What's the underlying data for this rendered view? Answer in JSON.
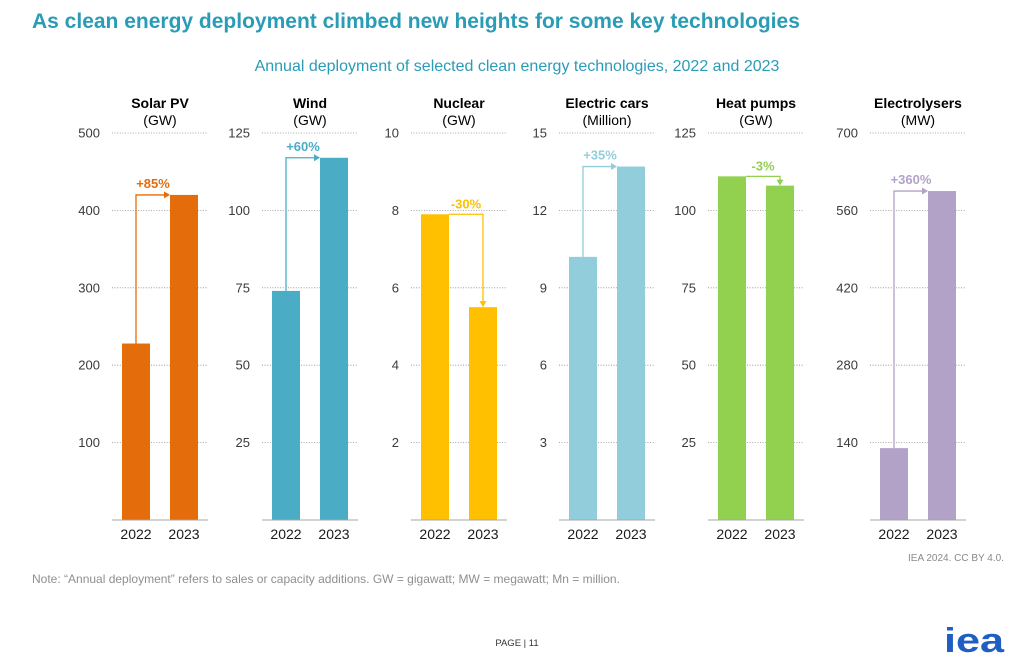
{
  "header": {
    "title": "As clean energy deployment climbed new heights for some key technologies",
    "subtitle": "Annual deployment of selected clean energy technologies, 2022 and 2023"
  },
  "chart_data": [
    {
      "type": "bar",
      "title": "Solar PV",
      "unit": "(GW)",
      "categories": [
        "2022",
        "2023"
      ],
      "values": [
        228,
        420
      ],
      "ylim": [
        0,
        500
      ],
      "yticks": [
        100,
        200,
        300,
        400,
        500
      ],
      "grid": true,
      "change_label": "+85%",
      "color": "#e46c0a"
    },
    {
      "type": "bar",
      "title": "Wind",
      "unit": "(GW)",
      "categories": [
        "2022",
        "2023"
      ],
      "values": [
        74,
        117
      ],
      "ylim": [
        0,
        125
      ],
      "yticks": [
        25,
        50,
        75,
        100,
        125
      ],
      "grid": true,
      "change_label": "+60%",
      "color": "#4bacc6"
    },
    {
      "type": "bar",
      "title": "Nuclear",
      "unit": "(GW)",
      "categories": [
        "2022",
        "2023"
      ],
      "values": [
        7.9,
        5.5
      ],
      "ylim": [
        0,
        10
      ],
      "yticks": [
        2,
        4,
        6,
        8,
        10
      ],
      "grid": true,
      "change_label": "-30%",
      "color": "#ffc000"
    },
    {
      "type": "bar",
      "title": "Electric cars",
      "unit": "(Million)",
      "categories": [
        "2022",
        "2023"
      ],
      "values": [
        10.2,
        13.7
      ],
      "ylim": [
        0,
        15
      ],
      "yticks": [
        3,
        6,
        9,
        12,
        15
      ],
      "grid": true,
      "change_label": "+35%",
      "color": "#92cddc"
    },
    {
      "type": "bar",
      "title": "Heat pumps",
      "unit": "(GW)",
      "categories": [
        "2022",
        "2023"
      ],
      "values": [
        111,
        108
      ],
      "ylim": [
        0,
        125
      ],
      "yticks": [
        25,
        50,
        75,
        100,
        125
      ],
      "grid": true,
      "change_label": "-3%",
      "color": "#92d050"
    },
    {
      "type": "bar",
      "title": "Electrolysers",
      "unit": "(MW)",
      "categories": [
        "2022",
        "2023"
      ],
      "values": [
        130,
        595
      ],
      "ylim": [
        0,
        700
      ],
      "yticks": [
        140,
        280,
        420,
        560,
        700
      ],
      "grid": true,
      "change_label": "+360%",
      "color": "#b3a2c7"
    }
  ],
  "footer": {
    "source": "IEA 2024. CC BY 4.0.",
    "note": "Note: “Annual deployment” refers to sales or capacity additions. GW = gigawatt; MW = megawatt; Mn = million.",
    "page": "PAGE | 11",
    "logo": "iea"
  },
  "colors": {
    "title": "#2a9cb5",
    "logo": "#1f5fc4"
  }
}
